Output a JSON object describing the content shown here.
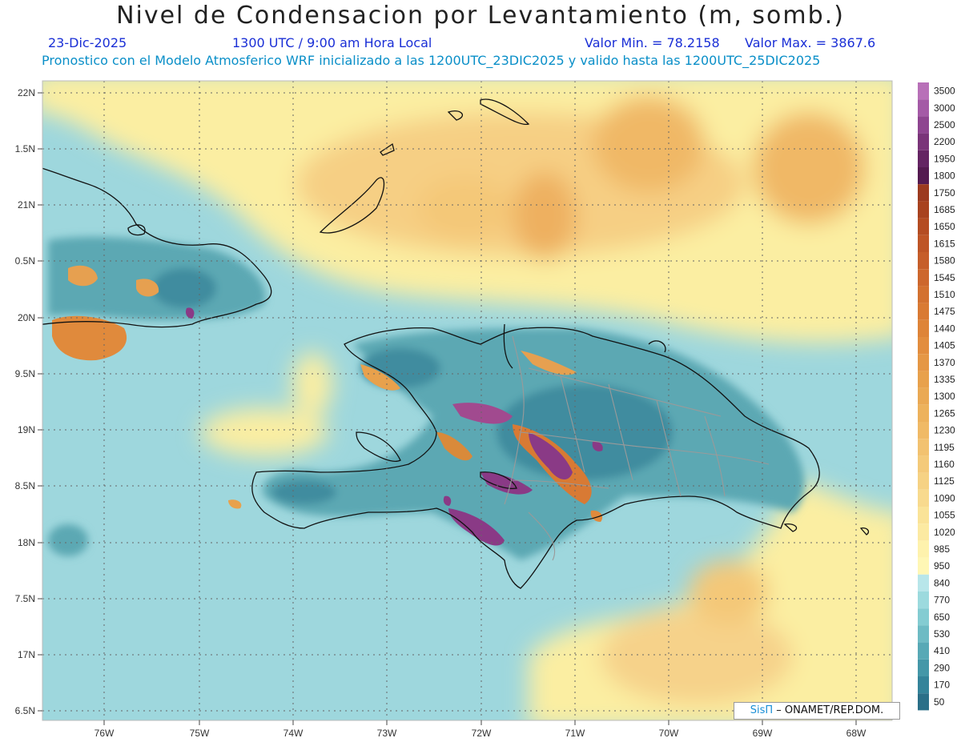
{
  "header": {
    "title": "Nivel de Condensacion por Levantamiento (m, somb.)",
    "date": "23-Dic-2025",
    "time": "1300 UTC / 9:00 am Hora Local",
    "min": "Valor Min. = 78.2158",
    "max": "Valor Max. = 3867.6",
    "subtitle": "Pronostico con el Modelo Atmosferico WRF inicializado a las 1200UTC_23DIC2025 y valido hasta las  1200UTC_25DIC2025"
  },
  "lat_labels": [
    "22N",
    "1.5N",
    "21N",
    "0.5N",
    "20N",
    "9.5N",
    "19N",
    "8.5N",
    "18N",
    "7.5N",
    "17N",
    "6.5N"
  ],
  "lon_labels": [
    "76W",
    "75W",
    "74W",
    "73W",
    "72W",
    "71W",
    "70W",
    "69W",
    "68W"
  ],
  "legend": {
    "labels": [
      "3500",
      "3000",
      "2500",
      "2200",
      "1950",
      "1800",
      "1750",
      "1685",
      "1650",
      "1615",
      "1580",
      "1545",
      "1510",
      "1475",
      "1440",
      "1405",
      "1370",
      "1335",
      "1300",
      "1265",
      "1230",
      "1195",
      "1160",
      "1125",
      "1090",
      "1055",
      "1020",
      "985",
      "950",
      "840",
      "770",
      "650",
      "530",
      "410",
      "290",
      "170",
      "50"
    ],
    "colors": [
      "#b870b8",
      "#a45aa6",
      "#8e4590",
      "#7a3479",
      "#642463",
      "#541a50",
      "#9c3a1f",
      "#a8421f",
      "#b44c22",
      "#be5526",
      "#c65e2a",
      "#cd672d",
      "#d37130",
      "#d97a33",
      "#de8438",
      "#e28d3e",
      "#e59745",
      "#e8a14c",
      "#eaa954",
      "#edb25c",
      "#f0ba66",
      "#f2c270",
      "#f4ca7a",
      "#f6d284",
      "#f8da8e",
      "#faE398",
      "#fceaa2",
      "#fef2ad",
      "#fff7b5",
      "#b8e6ea",
      "#9cdade",
      "#84ccd2",
      "#6ebbc4",
      "#58a9b6",
      "#4497a8",
      "#34849a",
      "#2a6f88"
    ]
  },
  "credit": {
    "sis": "SisΠ",
    "rest": "– ONAMET/REP.DOM."
  }
}
